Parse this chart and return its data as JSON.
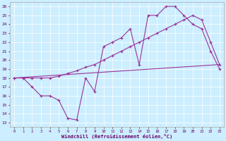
{
  "xlabel": "Windchill (Refroidissement éolien,°C)",
  "bg_color": "#cceeff",
  "line_color": "#993399",
  "xlim": [
    -0.5,
    23.5
  ],
  "ylim": [
    12.5,
    26.5
  ],
  "xticks": [
    0,
    1,
    2,
    3,
    4,
    5,
    6,
    7,
    8,
    9,
    10,
    11,
    12,
    13,
    14,
    15,
    16,
    17,
    18,
    19,
    20,
    21,
    22,
    23
  ],
  "yticks": [
    13,
    14,
    15,
    16,
    17,
    18,
    19,
    20,
    21,
    22,
    23,
    24,
    25,
    26
  ],
  "line1_x": [
    0,
    1,
    2,
    3,
    4,
    5,
    6,
    7,
    8,
    9,
    10,
    11,
    12,
    13,
    14,
    15,
    16,
    17,
    18,
    19,
    20,
    21,
    22,
    23
  ],
  "line1_y": [
    18,
    18,
    17,
    16,
    16,
    15.5,
    13.5,
    13.3,
    18,
    16.5,
    21.5,
    22,
    22.5,
    23.5,
    19.5,
    25,
    25,
    26,
    26,
    25,
    24,
    23.5,
    21,
    19
  ],
  "line2_x": [
    0,
    23
  ],
  "line2_y": [
    18,
    19.5
  ],
  "line3_x": [
    0,
    1,
    2,
    3,
    4,
    5,
    6,
    7,
    8,
    9,
    10,
    11,
    12,
    13,
    14,
    15,
    16,
    17,
    18,
    19,
    20,
    21,
    22,
    23
  ],
  "line3_y": [
    18,
    18,
    18,
    18,
    18,
    18.2,
    18.5,
    18.8,
    19.2,
    19.5,
    20,
    20.5,
    21,
    21.5,
    22,
    22.5,
    23,
    23.5,
    24,
    24.5,
    25,
    24.5,
    22,
    19.5
  ]
}
